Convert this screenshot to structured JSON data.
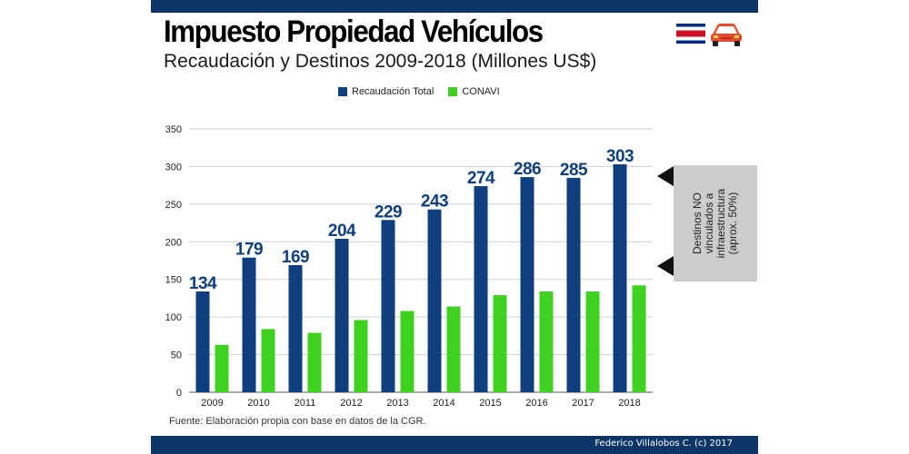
{
  "header": {
    "title": "Impuesto Propiedad Vehículos",
    "subtitle": "Recaudación y Destinos 2009-2018 (Millones US$)"
  },
  "icons": {
    "flag": "costa-rica-flag-icon",
    "car": "car-icon"
  },
  "colors": {
    "brand_bar": "#0d3566",
    "total": "#0f3f7f",
    "conavi": "#3fd11f",
    "callout": "#cccccc"
  },
  "chart_data": {
    "type": "bar",
    "categories": [
      "2009",
      "2010",
      "2011",
      "2012",
      "2013",
      "2014",
      "2015",
      "2016",
      "2017",
      "2018"
    ],
    "series": [
      {
        "name": "Recaudación Total",
        "values": [
          134,
          179,
          169,
          204,
          229,
          243,
          274,
          286,
          285,
          303
        ],
        "color": "#0f3f7f",
        "labeled": true
      },
      {
        "name": "CONAVI",
        "values": [
          63,
          84,
          79,
          96,
          108,
          114,
          129,
          134,
          134,
          142
        ],
        "color": "#3fd11f",
        "labeled": false
      }
    ],
    "yticks": [
      0,
      50,
      100,
      150,
      200,
      250,
      300,
      350
    ],
    "ylim": [
      0,
      350
    ],
    "grid": true,
    "legend": "top-center"
  },
  "callout": {
    "text": "Destinos NO vinculados a infraestructura (aprox. 50%)"
  },
  "footer": {
    "source": "Fuente: Elaboración propia con base en datos de la CGR.",
    "credit": "Federico Villalobos  C. (c) 2017"
  }
}
